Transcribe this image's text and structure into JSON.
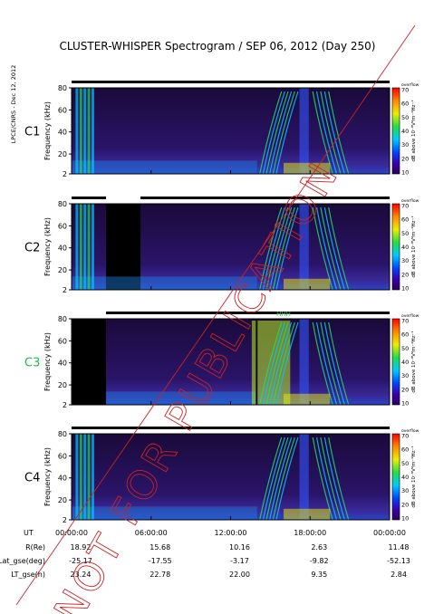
{
  "chart_data": {
    "type": "heatmap",
    "title": "CLUSTER-WHISPER Spectrogram / SEP 06, 2012 (Day 250)",
    "side_note": "LPCE/CNRS - Dec 12, 2012",
    "watermark": "NOT FOR PUBLICATION",
    "ylabel": "Frequency (kHz)",
    "yticks": [
      "2",
      "20",
      "40",
      "60",
      "80"
    ],
    "ylim": [
      2,
      80
    ],
    "colorbar": {
      "label": "dB above 10⁻⁸V²m⁻²Hz⁻¹",
      "ticks": [
        "10",
        "20",
        "30",
        "40",
        "50",
        "60",
        "70"
      ],
      "range": [
        10,
        70
      ],
      "top_text": "overflow"
    },
    "x_tick_times": [
      "00:00:00",
      "06:00:00",
      "12:00:00",
      "18:00:00",
      "00:00:00"
    ],
    "panels": [
      {
        "name": "C1",
        "color": "#000000",
        "coverage": [
          [
            0,
            24
          ]
        ]
      },
      {
        "name": "C2",
        "color": "#000000",
        "coverage": [
          [
            0,
            2.6
          ],
          [
            5.2,
            24
          ]
        ]
      },
      {
        "name": "C3",
        "color": "#22bb44",
        "coverage": [
          [
            2.6,
            24
          ]
        ],
        "marker": "HHH"
      },
      {
        "name": "C4",
        "color": "#000000",
        "coverage": [
          [
            0,
            24
          ]
        ]
      }
    ],
    "ephemeris": {
      "rows": [
        {
          "label": "UT",
          "values": [
            "00:00:00",
            "06:00:00",
            "12:00:00",
            "18:00:00",
            "00:00:00"
          ]
        },
        {
          "label": "R(Re)",
          "values": [
            "18.92",
            "15.68",
            "10.16",
            "2.63",
            "11.48"
          ]
        },
        {
          "label": "Lat_gse(deg)",
          "values": [
            "-25.17",
            "-17.55",
            "-3.17",
            "-9.82",
            "-52.13"
          ]
        },
        {
          "label": "LT_gse(h)",
          "values": [
            "23.24",
            "22.78",
            "22.00",
            "9.35",
            "2.84"
          ]
        }
      ]
    }
  }
}
